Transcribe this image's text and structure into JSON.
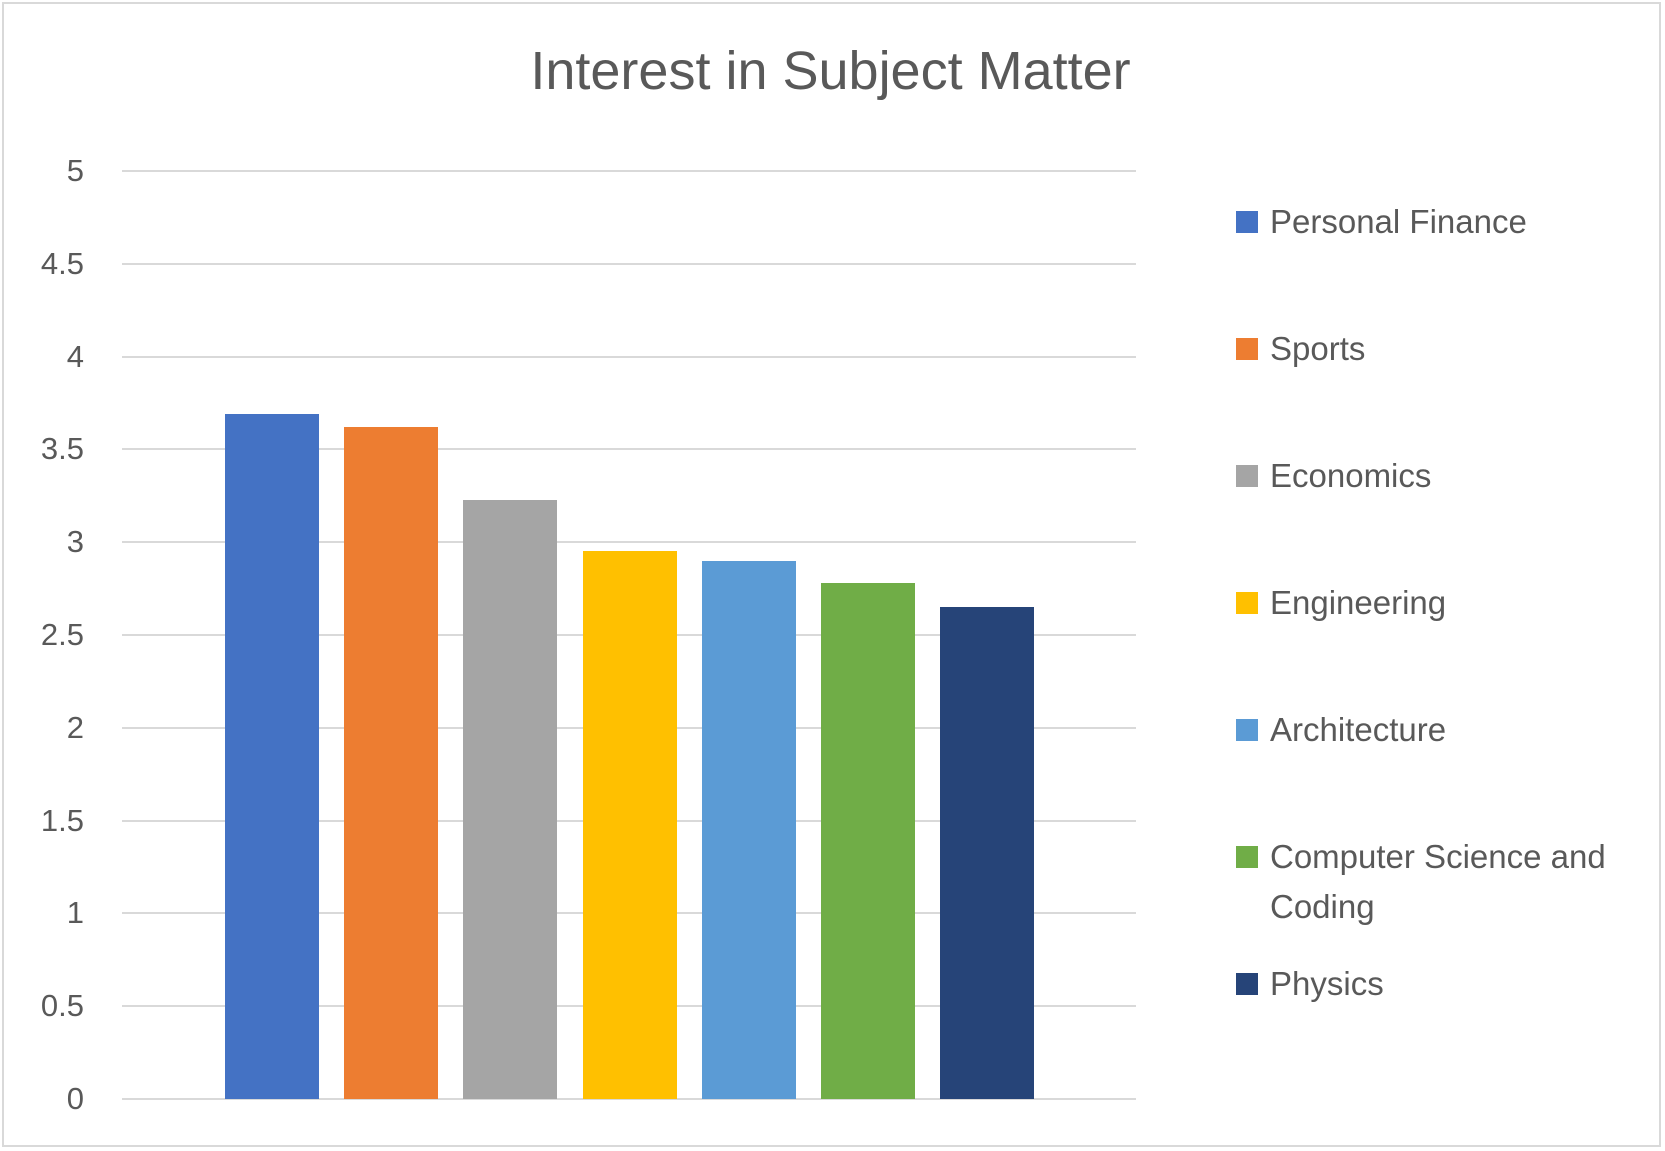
{
  "chart_data": {
    "type": "bar",
    "title": "Interest in Subject Matter",
    "xlabel": "",
    "ylabel": "",
    "ylim": [
      0,
      5
    ],
    "yticks": [
      "0",
      "0.5",
      "1",
      "1.5",
      "2",
      "2.5",
      "3",
      "3.5",
      "4",
      "4.5",
      "5"
    ],
    "grid": true,
    "legend_position": "right",
    "categories": [
      ""
    ],
    "series": [
      {
        "name": "Personal Finance",
        "values": [
          3.69
        ],
        "color": "#4472C4"
      },
      {
        "name": "Sports",
        "values": [
          3.62
        ],
        "color": "#ED7D31"
      },
      {
        "name": "Economics",
        "values": [
          3.23
        ],
        "color": "#A5A5A5"
      },
      {
        "name": "Engineering",
        "values": [
          2.95
        ],
        "color": "#FFC000"
      },
      {
        "name": "Architecture",
        "values": [
          2.9
        ],
        "color": "#5B9BD5"
      },
      {
        "name": "Computer Science and Coding",
        "values": [
          2.78
        ],
        "color": "#70AD47"
      },
      {
        "name": "Physics",
        "values": [
          2.65
        ],
        "color": "#264478"
      }
    ]
  },
  "legend": {
    "items": [
      {
        "label": "Personal Finance",
        "color": "#4472C4"
      },
      {
        "label": "Sports",
        "color": "#ED7D31"
      },
      {
        "label": "Economics",
        "color": "#A5A5A5"
      },
      {
        "label": "Engineering",
        "color": "#FFC000"
      },
      {
        "label": "Architecture",
        "color": "#5B9BD5"
      },
      {
        "label_line1": "Computer Science and",
        "label_line2": "Coding",
        "label": "Computer Science and Coding",
        "color": "#70AD47"
      },
      {
        "label": "Physics",
        "color": "#264478"
      }
    ]
  }
}
